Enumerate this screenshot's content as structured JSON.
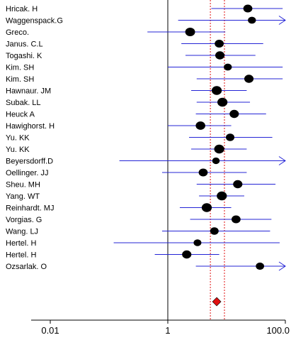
{
  "chart_data": {
    "type": "forest",
    "title": "",
    "xlabel": "",
    "x_scale": "log",
    "xlim": [
      0.01,
      100.0
    ],
    "ticks": [
      {
        "value": 0.01,
        "label": "0.01"
      },
      {
        "value": 1,
        "label": "1"
      },
      {
        "value": 100.0,
        "label": "100.0"
      }
    ],
    "reference_line": 1,
    "pooled": {
      "estimate": 6.8,
      "ci": [
        5.3,
        9.2
      ]
    },
    "colors": {
      "study": "#000000",
      "ci_line": "#2424d6",
      "pooled_marker": "#e01010",
      "pooled_band": "#e01010",
      "axis": "#000000"
    },
    "studies": [
      {
        "label": "Hricak. H",
        "estimate": 23,
        "ci": [
          5.5,
          90
        ],
        "weight": 0.8,
        "ci_truncated": false
      },
      {
        "label": "Waggenspack.G",
        "estimate": 27,
        "ci": [
          1.5,
          100
        ],
        "weight": 0.6,
        "ci_truncated": true
      },
      {
        "label": "Greco.",
        "estimate": 2.4,
        "ci": [
          0.45,
          9.5
        ],
        "weight": 0.95,
        "ci_truncated": false
      },
      {
        "label": "Janus. C.L",
        "estimate": 7.5,
        "ci": [
          1.7,
          42
        ],
        "weight": 0.8,
        "ci_truncated": false
      },
      {
        "label": "Togashi. K",
        "estimate": 7.7,
        "ci": [
          2.0,
          31
        ],
        "weight": 0.85,
        "ci_truncated": false
      },
      {
        "label": "Kim. SH",
        "estimate": 10.5,
        "ci": [
          1.0,
          90
        ],
        "weight": 0.6,
        "ci_truncated": false
      },
      {
        "label": "Kim. SH",
        "estimate": 24,
        "ci": [
          3.1,
          90
        ],
        "weight": 0.85,
        "ci_truncated": false
      },
      {
        "label": "Hawnaur. JM",
        "estimate": 6.8,
        "ci": [
          2.5,
          22
        ],
        "weight": 1.0,
        "ci_truncated": false
      },
      {
        "label": "Subak. LL",
        "estimate": 8.5,
        "ci": [
          3.1,
          25
        ],
        "weight": 1.0,
        "ci_truncated": false
      },
      {
        "label": "Heuck A",
        "estimate": 13.5,
        "ci": [
          3.0,
          47
        ],
        "weight": 0.85,
        "ci_truncated": false
      },
      {
        "label": "Hawighorst. H",
        "estimate": 3.6,
        "ci": [
          1.0,
          12
        ],
        "weight": 0.9,
        "ci_truncated": false
      },
      {
        "label": "Yu. KK",
        "estimate": 11.5,
        "ci": [
          2.3,
          60
        ],
        "weight": 0.7,
        "ci_truncated": false
      },
      {
        "label": "Yu. KK",
        "estimate": 7.5,
        "ci": [
          2.5,
          22
        ],
        "weight": 1.0,
        "ci_truncated": false
      },
      {
        "label": "Beyersdorff.D",
        "estimate": 6.6,
        "ci": [
          0.15,
          100
        ],
        "weight": 0.5,
        "ci_truncated": true
      },
      {
        "label": "Oellinger. JJ",
        "estimate": 4.0,
        "ci": [
          0.8,
          22
        ],
        "weight": 0.8,
        "ci_truncated": false
      },
      {
        "label": "Sheu. MH",
        "estimate": 15.5,
        "ci": [
          3.1,
          68
        ],
        "weight": 0.85,
        "ci_truncated": false
      },
      {
        "label": "Yang. WT",
        "estimate": 8.3,
        "ci": [
          3.4,
          20
        ],
        "weight": 1.0,
        "ci_truncated": false
      },
      {
        "label": "Reinhardt. MJ",
        "estimate": 4.6,
        "ci": [
          1.6,
          12
        ],
        "weight": 1.0,
        "ci_truncated": false
      },
      {
        "label": "Vorgias. G",
        "estimate": 14.5,
        "ci": [
          2.4,
          58
        ],
        "weight": 0.8,
        "ci_truncated": false
      },
      {
        "label": "Wang. LJ",
        "estimate": 6.2,
        "ci": [
          0.8,
          55
        ],
        "weight": 0.7,
        "ci_truncated": false
      },
      {
        "label": "Hertel. H",
        "estimate": 3.2,
        "ci": [
          0.12,
          80
        ],
        "weight": 0.55,
        "ci_truncated": false
      },
      {
        "label": "Hertel. H",
        "estimate": 2.1,
        "ci": [
          0.6,
          7.5
        ],
        "weight": 0.85,
        "ci_truncated": false
      },
      {
        "label": "Ozsarlak. O",
        "estimate": 37,
        "ci": [
          3.0,
          100
        ],
        "weight": 0.65,
        "ci_truncated": true
      }
    ]
  }
}
